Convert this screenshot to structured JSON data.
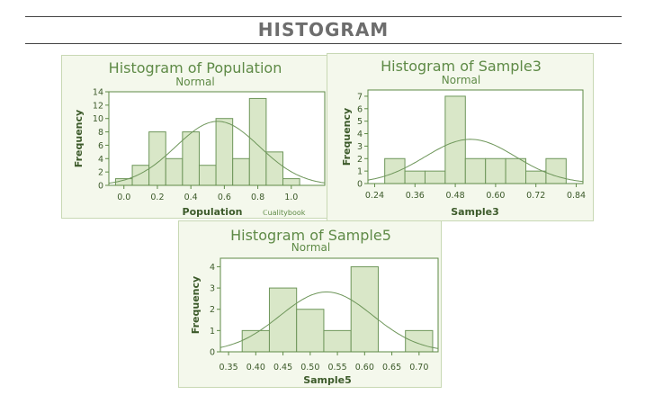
{
  "page": {
    "title": "HISTOGRAM"
  },
  "chart_data": [
    {
      "type": "bar",
      "title": "Histogram of Population",
      "subtitle": "Normal",
      "xlabel": "Population",
      "ylabel": "Frequency",
      "bin_width": 0.1,
      "bin_centers": [
        0.0,
        0.1,
        0.2,
        0.3,
        0.4,
        0.5,
        0.6,
        0.7,
        0.8,
        0.9,
        1.0
      ],
      "values": [
        1,
        3,
        8,
        4,
        8,
        3,
        10,
        4,
        13,
        5,
        1
      ],
      "xlim": [
        -0.09,
        1.2
      ],
      "ylim": [
        0,
        14
      ],
      "xticks": [
        0.0,
        0.2,
        0.4,
        0.6,
        0.8,
        1.0
      ],
      "xtick_labels": [
        "0.0",
        "0.2",
        "0.4",
        "0.6",
        "0.8",
        "1.0"
      ],
      "yticks": [
        0,
        2,
        4,
        6,
        8,
        10,
        12,
        14
      ],
      "ytick_labels": [
        "0",
        "2",
        "4",
        "6",
        "8",
        "10",
        "12",
        "14"
      ],
      "normal_fit": {
        "mean": 0.56,
        "sd": 0.25,
        "n": 60
      },
      "watermark": "ℂualitybook"
    },
    {
      "type": "bar",
      "title": "Histogram of Sample3",
      "subtitle": "Normal",
      "xlabel": "Sample3",
      "ylabel": "Frequency",
      "bin_width": 0.06,
      "bin_centers": [
        0.3,
        0.36,
        0.42,
        0.48,
        0.54,
        0.6,
        0.66,
        0.72,
        0.78
      ],
      "values": [
        2,
        1,
        1,
        7,
        2,
        2,
        2,
        1,
        2
      ],
      "xlim": [
        0.22,
        0.86
      ],
      "ylim": [
        0,
        7.5
      ],
      "xticks": [
        0.24,
        0.36,
        0.48,
        0.6,
        0.72,
        0.84
      ],
      "xtick_labels": [
        "0.24",
        "0.36",
        "0.48",
        "0.60",
        "0.72",
        "0.84"
      ],
      "yticks": [
        0,
        1,
        2,
        3,
        4,
        5,
        6,
        7
      ],
      "ytick_labels": [
        "0",
        "1",
        "2",
        "3",
        "4",
        "5",
        "6",
        "7"
      ],
      "normal_fit": {
        "mean": 0.525,
        "sd": 0.135,
        "n": 20
      }
    },
    {
      "type": "bar",
      "title": "Histogram of Sample5",
      "subtitle": "Normal",
      "xlabel": "Sample5",
      "ylabel": "Frequency",
      "bin_width": 0.05,
      "bin_centers": [
        0.4,
        0.45,
        0.5,
        0.55,
        0.6,
        0.65,
        0.7
      ],
      "values": [
        1,
        3,
        2,
        1,
        4,
        0,
        1
      ],
      "xlim": [
        0.335,
        0.735
      ],
      "ylim": [
        0,
        4.4
      ],
      "xticks": [
        0.35,
        0.4,
        0.45,
        0.5,
        0.55,
        0.6,
        0.65,
        0.7
      ],
      "xtick_labels": [
        "0.35",
        "0.40",
        "0.45",
        "0.50",
        "0.55",
        "0.60",
        "0.65",
        "0.70"
      ],
      "yticks": [
        0,
        1,
        2,
        3,
        4
      ],
      "ytick_labels": [
        "0",
        "1",
        "2",
        "3",
        "4"
      ],
      "normal_fit": {
        "mean": 0.53,
        "sd": 0.085,
        "n": 12
      }
    }
  ],
  "colors": {
    "panel_bg": "#f4f8ec",
    "plot_bg": "#ffffff",
    "bar_fill": "#d9e7c8",
    "bar_stroke": "#6e965a",
    "curve": "#6e965a",
    "axis": "#5e8a46",
    "title_text": "#5e8a46"
  }
}
